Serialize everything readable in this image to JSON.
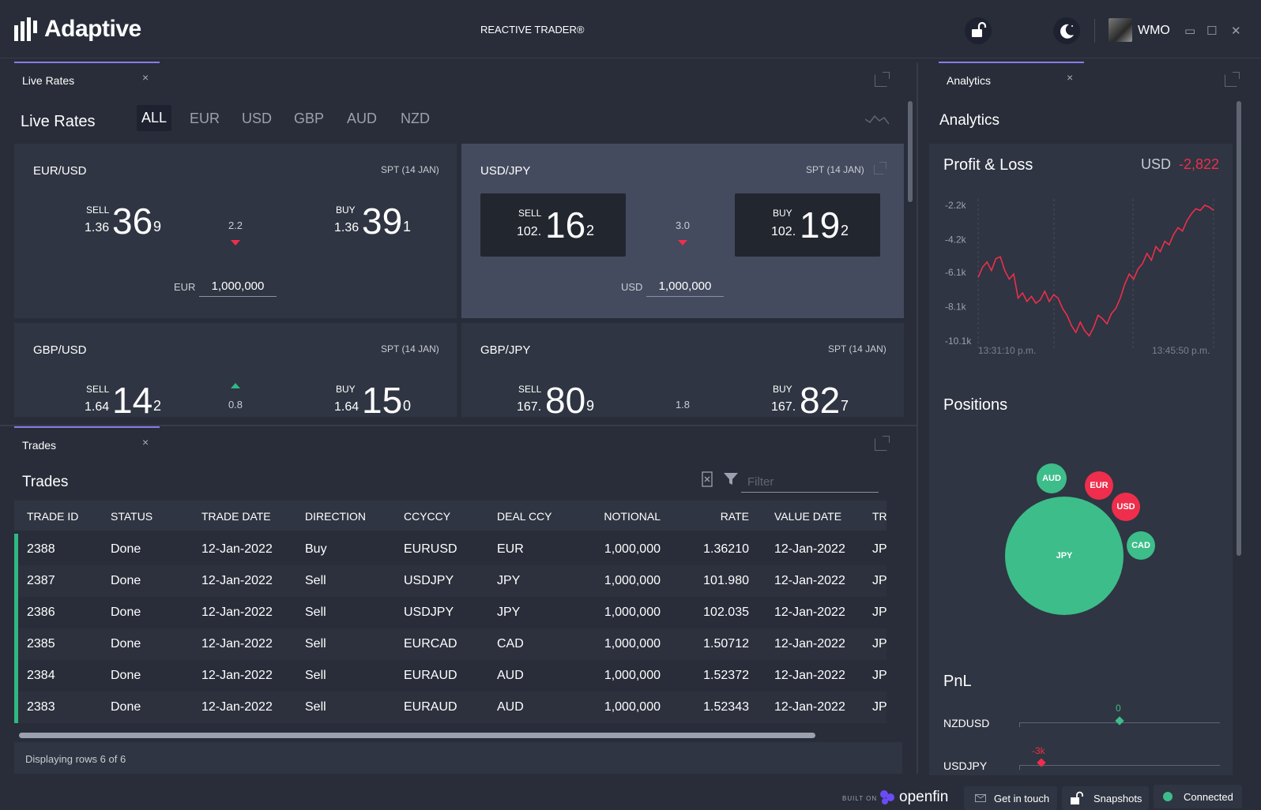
{
  "header": {
    "brand": "Adaptive",
    "app_title": "REACTIVE TRADER®",
    "user": "WMO",
    "window_controls": [
      "▭",
      "☐",
      "✕"
    ]
  },
  "live_rates": {
    "tab_label": "Live Rates",
    "close": "×",
    "title": "Live Rates",
    "filters": [
      "ALL",
      "EUR",
      "USD",
      "GBP",
      "AUD",
      "NZD"
    ],
    "tiles": [
      {
        "pair": "EUR/USD",
        "spot": "SPT (14 JAN)",
        "sell_label": "SELL",
        "sell_small": "1.36",
        "sell_big": "36",
        "sell_pip": "9",
        "buy_label": "BUY",
        "buy_small": "1.36",
        "buy_big": "39",
        "buy_pip": "1",
        "spread": "2.2",
        "notional_ccy": "EUR",
        "notional": "1,000,000"
      },
      {
        "pair": "USD/JPY",
        "spot": "SPT (14 JAN)",
        "sell_label": "SELL",
        "sell_small": "102.",
        "sell_big": "16",
        "sell_pip": "2",
        "buy_label": "BUY",
        "buy_small": "102.",
        "buy_big": "19",
        "buy_pip": "2",
        "spread": "3.0",
        "notional_ccy": "USD",
        "notional": "1,000,000"
      },
      {
        "pair": "GBP/USD",
        "spot": "SPT (14 JAN)",
        "sell_label": "SELL",
        "sell_small": "1.64",
        "sell_big": "14",
        "sell_pip": "2",
        "buy_label": "BUY",
        "buy_small": "1.64",
        "buy_big": "15",
        "buy_pip": "0",
        "spread": "0.8"
      },
      {
        "pair": "GBP/JPY",
        "spot": "SPT (14 JAN)",
        "sell_label": "SELL",
        "sell_small": "167.",
        "sell_big": "80",
        "sell_pip": "9",
        "buy_label": "BUY",
        "buy_small": "167.",
        "buy_big": "82",
        "buy_pip": "7",
        "spread": "1.8"
      }
    ]
  },
  "trades": {
    "tab_label": "Trades",
    "close": "×",
    "title": "Trades",
    "filter_placeholder": "Filter",
    "columns": [
      "TRADE ID",
      "STATUS",
      "TRADE DATE",
      "DIRECTION",
      "CCYCCY",
      "DEAL CCY",
      "NOTIONAL",
      "RATE",
      "VALUE DATE",
      "TRA"
    ],
    "rows": [
      [
        "2388",
        "Done",
        "12-Jan-2022",
        "Buy",
        "EURUSD",
        "EUR",
        "1,000,000",
        "1.36210",
        "12-Jan-2022",
        "JPV"
      ],
      [
        "2387",
        "Done",
        "12-Jan-2022",
        "Sell",
        "USDJPY",
        "JPY",
        "1,000,000",
        "101.980",
        "12-Jan-2022",
        "JPV"
      ],
      [
        "2386",
        "Done",
        "12-Jan-2022",
        "Sell",
        "USDJPY",
        "JPY",
        "1,000,000",
        "102.035",
        "12-Jan-2022",
        "JPV"
      ],
      [
        "2385",
        "Done",
        "12-Jan-2022",
        "Sell",
        "EURCAD",
        "CAD",
        "1,000,000",
        "1.50712",
        "12-Jan-2022",
        "JPV"
      ],
      [
        "2384",
        "Done",
        "12-Jan-2022",
        "Sell",
        "EURAUD",
        "AUD",
        "1,000,000",
        "1.52372",
        "12-Jan-2022",
        "JPV"
      ],
      [
        "2383",
        "Done",
        "12-Jan-2022",
        "Sell",
        "EURAUD",
        "AUD",
        "1,000,000",
        "1.52343",
        "12-Jan-2022",
        "JPV"
      ]
    ],
    "status": "Displaying rows 6 of 6"
  },
  "analytics": {
    "tab_label": "Analytics",
    "close": "×",
    "title": "Analytics",
    "pnl_title": "Profit & Loss",
    "pnl_ccy": "USD",
    "pnl_value": "-2,822",
    "chart_data": {
      "type": "line",
      "title": "Profit & Loss",
      "y_ticks": [
        "-2.2k",
        "-4.2k",
        "-6.1k",
        "-8.1k",
        "-10.1k"
      ],
      "ylim": [
        -10.1,
        -2.2
      ],
      "x_ticks": [
        "13:31:10 p.m.",
        "13:45:50 p.m."
      ],
      "values": [
        -6.4,
        -5.8,
        -5.5,
        -6.0,
        -5.3,
        -5.2,
        -6.0,
        -6.5,
        -6.2,
        -7.6,
        -7.3,
        -7.8,
        -7.5,
        -7.9,
        -7.7,
        -7.2,
        -7.8,
        -7.4,
        -7.6,
        -8.2,
        -8.6,
        -9.2,
        -9.6,
        -9.0,
        -9.5,
        -9.8,
        -9.3,
        -8.6,
        -8.8,
        -9.1,
        -8.5,
        -8.2,
        -7.6,
        -6.8,
        -6.2,
        -6.5,
        -5.9,
        -5.6,
        -5.0,
        -5.4,
        -4.6,
        -4.9,
        -4.3,
        -4.5,
        -3.9,
        -3.5,
        -3.7,
        -3.1,
        -2.7,
        -2.4,
        -2.5,
        -2.2,
        -2.3,
        -2.5
      ],
      "series_color": "#ee2e4c"
    },
    "positions_title": "Positions",
    "positions": [
      {
        "ccy": "JPY",
        "color": "#3dbd8a"
      },
      {
        "ccy": "AUD",
        "color": "#3dbd8a"
      },
      {
        "ccy": "EUR",
        "color": "#ee2e4c"
      },
      {
        "ccy": "USD",
        "color": "#ee2e4c"
      },
      {
        "ccy": "CAD",
        "color": "#3dbd8a"
      }
    ],
    "pnl_section_title": "PnL",
    "pnl_rows": [
      {
        "pair": "NZDUSD",
        "value": "0",
        "color": "#3dbd8a"
      },
      {
        "pair": "USDJPY",
        "value": "-3k",
        "color": "#ee2e4c"
      }
    ]
  },
  "footer": {
    "built_on": "BUILT ON",
    "openfin": "openfin",
    "get_in_touch": "Get in touch",
    "snapshots": "Snapshots",
    "connected": "Connected"
  },
  "colors": {
    "accent": "#8c7ae6",
    "buy_green": "#2fb883",
    "sell_red": "#ee2e4c",
    "bg": "#282d39",
    "panel": "#2f3542"
  }
}
